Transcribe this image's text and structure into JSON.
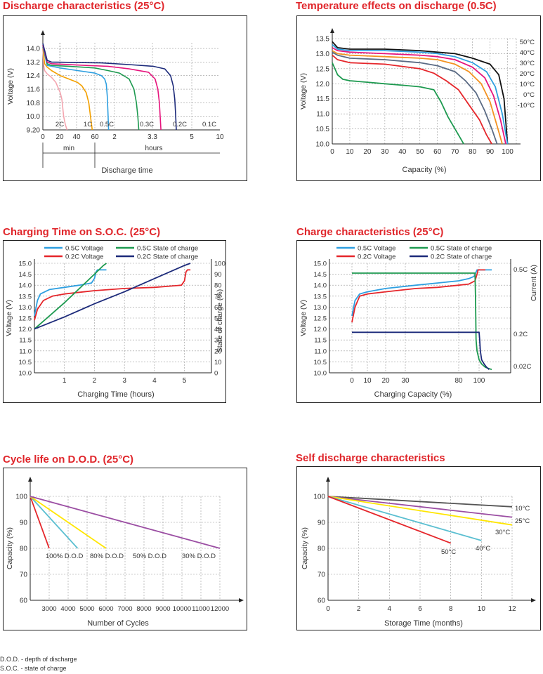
{
  "footnotes": [
    "D.O.D. - depth of discharge",
    "S.O.C. - state of charge"
  ],
  "chart_data": [
    {
      "id": "discharge",
      "type": "line",
      "title": "Discharge characteristics (25°C)",
      "ylabel": "Voltage (V)",
      "xlabel": "Discharge time",
      "ylim": [
        9.2,
        14.5
      ],
      "yticks": [
        "14.0",
        "13.2",
        "12.4",
        "11.6",
        "10.8",
        "10.0",
        "9.20"
      ],
      "xticks": [
        "0",
        "20",
        "40",
        "60",
        "2",
        "3.3",
        "5",
        "10"
      ],
      "unit_labels": [
        "min",
        "hours"
      ],
      "grid": true,
      "series": [
        {
          "name": "2C",
          "color": "#f4a6b0",
          "x": [
            0,
            1,
            2,
            5,
            10,
            15,
            20,
            22,
            24,
            26,
            28
          ],
          "y": [
            14.0,
            13.0,
            12.7,
            12.5,
            12.3,
            12.0,
            11.4,
            11.0,
            10.0,
            9.5,
            9.2
          ]
        },
        {
          "name": "1C",
          "color": "#f3a000",
          "x": [
            0,
            2,
            5,
            10,
            20,
            30,
            40,
            45,
            50,
            53,
            55,
            57
          ],
          "y": [
            14.1,
            13.1,
            12.9,
            12.7,
            12.4,
            12.2,
            12.0,
            11.8,
            11.4,
            10.8,
            10.0,
            9.2
          ]
        },
        {
          "name": "0.5C",
          "color": "#2e9fe0",
          "x": [
            0,
            5,
            10,
            20,
            40,
            60,
            80,
            90,
            95,
            98,
            100,
            102
          ],
          "y": [
            14.1,
            13.0,
            12.95,
            12.85,
            12.7,
            12.55,
            12.4,
            12.2,
            11.9,
            11.2,
            10.2,
            9.2
          ]
        },
        {
          "name": "0.3C",
          "color": "#1e9a50",
          "x": [
            0,
            5,
            10,
            30,
            60,
            100,
            130,
            150,
            160,
            165,
            168,
            170
          ],
          "y": [
            14.2,
            13.1,
            13.0,
            12.95,
            12.85,
            12.7,
            12.55,
            12.2,
            11.6,
            10.8,
            10.0,
            9.2
          ]
        },
        {
          "name": "0.2C",
          "color": "#e6157d",
          "x": [
            0,
            5,
            10,
            50,
            100,
            150,
            190,
            205,
            212,
            216,
            218,
            220
          ],
          "y": [
            14.2,
            13.2,
            13.1,
            13.0,
            12.95,
            12.8,
            12.6,
            12.2,
            11.6,
            10.8,
            10.0,
            9.2
          ]
        },
        {
          "name": "0.1C",
          "color": "#1c2a7a",
          "x": [
            0,
            5,
            10,
            80,
            150,
            200,
            230,
            245,
            252,
            256,
            258,
            260
          ],
          "y": [
            14.3,
            13.3,
            13.2,
            13.15,
            13.05,
            12.95,
            12.8,
            12.4,
            11.8,
            11.0,
            10.2,
            9.2
          ]
        }
      ]
    },
    {
      "id": "temperature",
      "type": "line",
      "title": "Temperature effects on discharge (0.5C)",
      "ylabel": "Voltage (V)",
      "xlabel": "Capacity (%)",
      "xlim": [
        0,
        105
      ],
      "ylim": [
        10.0,
        13.5
      ],
      "yticks": [
        "13.5",
        "13.0",
        "12.5",
        "12.0",
        "11.5",
        "11.0",
        "10.5",
        "10.0"
      ],
      "xticks": [
        "0",
        "10",
        "20",
        "30",
        "40",
        "50",
        "60",
        "70",
        "80",
        "90",
        "100"
      ],
      "grid": true,
      "series": [
        {
          "name": "50°C",
          "color": "#111111",
          "x": [
            0,
            3,
            10,
            30,
            50,
            60,
            70,
            80,
            90,
            95,
            98,
            100
          ],
          "y": [
            13.4,
            13.2,
            13.15,
            13.15,
            13.1,
            13.05,
            13.0,
            12.85,
            12.65,
            12.3,
            11.5,
            10.0
          ]
        },
        {
          "name": "40°C",
          "color": "#2e9fe0",
          "x": [
            0,
            3,
            10,
            30,
            50,
            60,
            70,
            80,
            88,
            93,
            97,
            100
          ],
          "y": [
            13.3,
            13.15,
            13.1,
            13.1,
            13.05,
            13.0,
            12.9,
            12.7,
            12.4,
            11.9,
            11.0,
            10.0
          ]
        },
        {
          "name": "30°C",
          "color": "#e6157d",
          "x": [
            0,
            3,
            10,
            30,
            50,
            60,
            70,
            80,
            87,
            92,
            96,
            99
          ],
          "y": [
            13.2,
            13.1,
            13.05,
            13.0,
            12.95,
            12.9,
            12.8,
            12.55,
            12.2,
            11.6,
            10.8,
            10.0
          ]
        },
        {
          "name": "20°C",
          "color": "#f39221",
          "x": [
            0,
            3,
            10,
            30,
            50,
            60,
            70,
            78,
            85,
            90,
            94,
            97
          ],
          "y": [
            13.1,
            13.0,
            12.95,
            12.9,
            12.85,
            12.8,
            12.65,
            12.4,
            12.0,
            11.4,
            10.6,
            10.0
          ]
        },
        {
          "name": "10°C",
          "color": "#5a6a84",
          "x": [
            0,
            3,
            10,
            30,
            50,
            60,
            70,
            76,
            82,
            87,
            91,
            94
          ],
          "y": [
            13.05,
            12.95,
            12.85,
            12.8,
            12.7,
            12.6,
            12.4,
            12.1,
            11.7,
            11.1,
            10.5,
            10.0
          ]
        },
        {
          "name": "0°C",
          "color": "#e5262b",
          "x": [
            0,
            3,
            10,
            30,
            50,
            58,
            65,
            72,
            78,
            84,
            88,
            91
          ],
          "y": [
            12.95,
            12.8,
            12.7,
            12.65,
            12.5,
            12.35,
            12.1,
            11.8,
            11.3,
            10.8,
            10.3,
            10.0
          ]
        },
        {
          "name": "-10°C",
          "color": "#1e9a50",
          "x": [
            0,
            3,
            6,
            10,
            20,
            30,
            40,
            50,
            58,
            62,
            66,
            70,
            73,
            75
          ],
          "y": [
            12.7,
            12.3,
            12.15,
            12.1,
            12.05,
            12.0,
            11.95,
            11.9,
            11.8,
            11.4,
            10.9,
            10.5,
            10.2,
            10.0
          ]
        }
      ]
    },
    {
      "id": "charging_soc",
      "type": "line",
      "title": "Charging Time on S.O.C. (25°C)",
      "ylabel": "Voltage (V)",
      "y2label": "State of charge (%)",
      "xlabel": "Charging Time (hours)",
      "xlim": [
        0,
        5.9
      ],
      "ylim": [
        10.0,
        15.0
      ],
      "y2lim": [
        0,
        100
      ],
      "yticks": [
        "15.0",
        "14.5",
        "14.0",
        "13.5",
        "13.0",
        "12.5",
        "12.0",
        "11.5",
        "11.0",
        "10.5",
        "10.0"
      ],
      "y2ticks": [
        "100",
        "90",
        "80",
        "70",
        "60",
        "50",
        "40",
        "30",
        "20",
        "10",
        "0"
      ],
      "xticks": [
        "1",
        "2",
        "3",
        "4",
        "5"
      ],
      "grid": true,
      "legend": "top",
      "series": [
        {
          "name": "0.5C Voltage",
          "color": "#2e9fe0",
          "axis": "left",
          "x": [
            0,
            0.1,
            0.2,
            0.5,
            1,
            1.5,
            1.9,
            2.0,
            2.05,
            2.1,
            2.4
          ],
          "y": [
            12.6,
            13.3,
            13.6,
            13.8,
            13.9,
            14.0,
            14.1,
            14.3,
            14.6,
            14.7,
            14.7
          ]
        },
        {
          "name": "0.2C Voltage",
          "color": "#e5262b",
          "axis": "left",
          "x": [
            0,
            0.1,
            0.3,
            0.6,
            1,
            2,
            3,
            4,
            4.9,
            5.0,
            5.05,
            5.1,
            5.2
          ],
          "y": [
            12.4,
            12.9,
            13.3,
            13.5,
            13.6,
            13.75,
            13.85,
            13.9,
            14.0,
            14.2,
            14.6,
            14.7,
            14.7
          ]
        },
        {
          "name": "0.5C State of charge",
          "color": "#1e9a50",
          "axis": "right",
          "x": [
            0,
            0.5,
            1,
            1.5,
            2,
            2.3,
            2.4
          ],
          "y": [
            40,
            52,
            64,
            77,
            90,
            98,
            100
          ]
        },
        {
          "name": "0.2C State of charge",
          "color": "#1c2a7a",
          "axis": "right",
          "x": [
            0,
            1,
            2,
            3,
            4,
            5,
            5.2
          ],
          "y": [
            40,
            51,
            63,
            74,
            86,
            98,
            100
          ]
        }
      ]
    },
    {
      "id": "charge_char",
      "type": "line",
      "title": "Charge characteristics (25°C)",
      "ylabel": "Voltage (V)",
      "y2label": "Current (A)",
      "xlabel": "Charging Capacity (%)",
      "xlim": [
        -5,
        125
      ],
      "ylim": [
        10.0,
        15.0
      ],
      "yticks": [
        "15.0",
        "14.5",
        "14.0",
        "13.5",
        "13.0",
        "12.5",
        "12.0",
        "11.5",
        "11.0",
        "10.5",
        "10.0"
      ],
      "y2ticks": [
        "0.5C",
        "0.2C",
        "0.02C"
      ],
      "xticks": [
        "0",
        "10",
        "20",
        "30",
        "80",
        "100"
      ],
      "grid": true,
      "legend": "top",
      "series": [
        {
          "name": "0.5C Voltage",
          "color": "#2e9fe0",
          "x": [
            0,
            2,
            5,
            10,
            20,
            40,
            60,
            80,
            90,
            95,
            97,
            98,
            110
          ],
          "y": [
            12.6,
            13.3,
            13.6,
            13.7,
            13.85,
            14.0,
            14.1,
            14.2,
            14.3,
            14.4,
            14.6,
            14.7,
            14.7
          ]
        },
        {
          "name": "0.2C Voltage",
          "color": "#e5262b",
          "x": [
            0,
            2,
            5,
            10,
            20,
            40,
            60,
            80,
            90,
            96,
            98,
            99,
            100,
            105
          ],
          "y": [
            12.3,
            13.0,
            13.5,
            13.6,
            13.7,
            13.85,
            13.9,
            14.0,
            14.05,
            14.2,
            14.5,
            14.7,
            14.7,
            14.7
          ]
        },
        {
          "name": "0.5C State of charge",
          "color": "#1e9a50",
          "x": [
            0,
            96,
            96.5,
            97,
            98,
            100,
            102,
            105,
            110
          ],
          "y": [
            14.55,
            14.55,
            13.5,
            11.5,
            11.0,
            10.6,
            10.4,
            10.25,
            10.15
          ]
        },
        {
          "name": "0.2C State of charge",
          "color": "#1c2a7a",
          "x": [
            0,
            100,
            100.5,
            101,
            102,
            104,
            106,
            108
          ],
          "y": [
            11.85,
            11.85,
            11.5,
            11.0,
            10.6,
            10.4,
            10.25,
            10.15
          ]
        }
      ]
    },
    {
      "id": "cycle_life",
      "type": "line",
      "title": "Cycle life on D.O.D. (25°C)",
      "ylabel": "Capacity (%)",
      "xlabel": "Number of Cycles",
      "xlim": [
        2000,
        12000
      ],
      "ylim": [
        60,
        100
      ],
      "yticks": [
        "100",
        "90",
        "80",
        "70",
        "60"
      ],
      "xticks": [
        "3000",
        "4000",
        "5000",
        "6000",
        "7000",
        "8000",
        "9000",
        "10000",
        "11000",
        "12000"
      ],
      "grid": true,
      "series": [
        {
          "name": "100% D.O.D",
          "color": "#e5262b",
          "x": [
            2000,
            3000
          ],
          "y": [
            100,
            80
          ]
        },
        {
          "name": "80% D.O.D",
          "color": "#5bbfd1",
          "x": [
            2000,
            4500
          ],
          "y": [
            100,
            80
          ]
        },
        {
          "name": "50% D.O.D",
          "color": "#ffe600",
          "x": [
            2000,
            6000
          ],
          "y": [
            100,
            80
          ]
        },
        {
          "name": "30% D.O.D",
          "color": "#9b4ea3",
          "x": [
            2000,
            12000
          ],
          "y": [
            100,
            80
          ]
        }
      ]
    },
    {
      "id": "self_discharge",
      "type": "line",
      "title": "Self discharge characteristics",
      "ylabel": "Capacity (%)",
      "xlabel": "Storage Time (months)",
      "xlim": [
        0,
        12
      ],
      "ylim": [
        60,
        100
      ],
      "yticks": [
        "100",
        "90",
        "80",
        "70",
        "60"
      ],
      "xticks": [
        "0",
        "2",
        "4",
        "6",
        "8",
        "10",
        "12"
      ],
      "grid": true,
      "series": [
        {
          "name": "10°C",
          "color": "#555555",
          "x": [
            0,
            12
          ],
          "y": [
            100,
            96
          ]
        },
        {
          "name": "25°C",
          "color": "#9b4ea3",
          "x": [
            0,
            12
          ],
          "y": [
            100,
            92
          ]
        },
        {
          "name": "30°C",
          "color": "#ffe600",
          "x": [
            0,
            12
          ],
          "y": [
            100,
            89
          ]
        },
        {
          "name": "40°C",
          "color": "#5bbfd1",
          "x": [
            0,
            10
          ],
          "y": [
            100,
            83
          ]
        },
        {
          "name": "50°C",
          "color": "#e5262b",
          "x": [
            0,
            8
          ],
          "y": [
            100,
            82
          ]
        }
      ]
    }
  ]
}
